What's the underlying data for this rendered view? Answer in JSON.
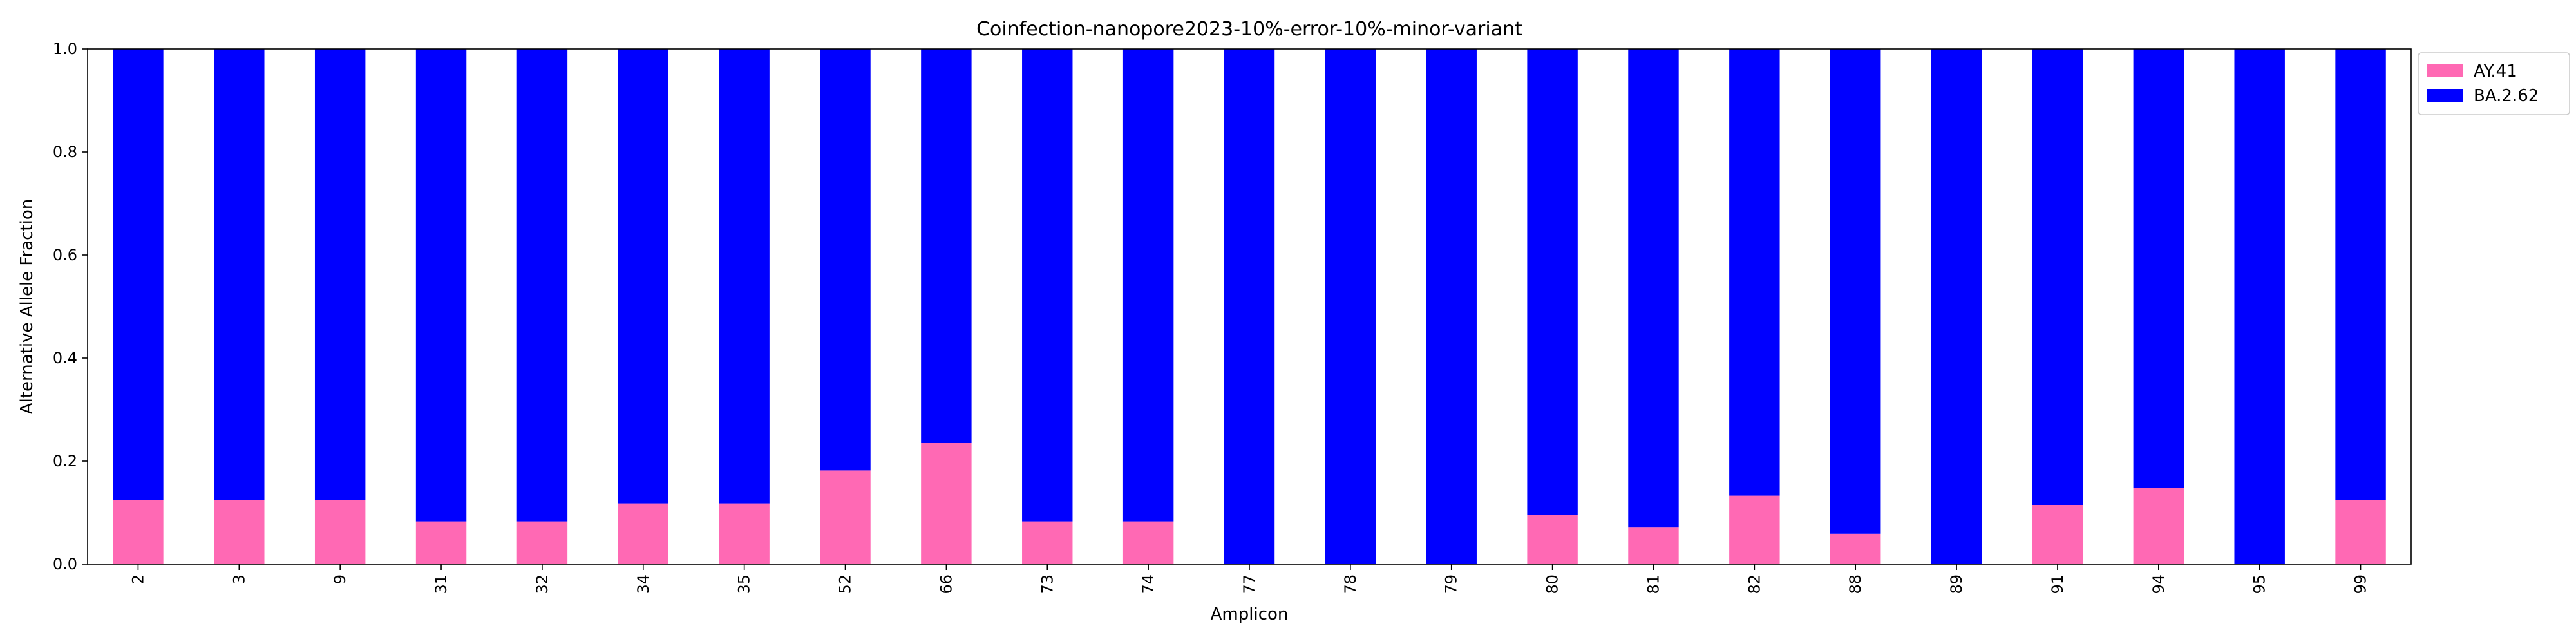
{
  "chart_data": {
    "type": "bar",
    "stacked": true,
    "title": "Coinfection-nanopore2023-10%-error-10%-minor-variant",
    "xlabel": "Amplicon",
    "ylabel": "Alternative Allele Fraction",
    "ylim": [
      0,
      1.0
    ],
    "yticks": [
      "0.0",
      "0.2",
      "0.4",
      "0.6",
      "0.8",
      "1.0"
    ],
    "grid": false,
    "legend_position": "upper-right-outside",
    "categories": [
      "2",
      "3",
      "9",
      "31",
      "32",
      "34",
      "35",
      "52",
      "66",
      "73",
      "74",
      "77",
      "78",
      "79",
      "80",
      "81",
      "82",
      "88",
      "89",
      "91",
      "94",
      "95",
      "99"
    ],
    "series": [
      {
        "name": "AY.41",
        "color": "#ff69b4",
        "values": [
          0.125,
          0.125,
          0.125,
          0.083,
          0.083,
          0.118,
          0.118,
          0.182,
          0.235,
          0.083,
          0.083,
          0.0,
          0.0,
          0.0,
          0.095,
          0.071,
          0.133,
          0.059,
          0.0,
          0.115,
          0.148,
          0.0,
          0.125
        ]
      },
      {
        "name": "BA.2.62",
        "color": "#0000ff",
        "values": [
          0.875,
          0.875,
          0.875,
          0.917,
          0.917,
          0.882,
          0.882,
          0.818,
          0.765,
          0.917,
          0.917,
          1.0,
          1.0,
          1.0,
          0.905,
          0.929,
          0.867,
          0.941,
          1.0,
          0.885,
          0.852,
          1.0,
          0.875
        ]
      }
    ]
  }
}
